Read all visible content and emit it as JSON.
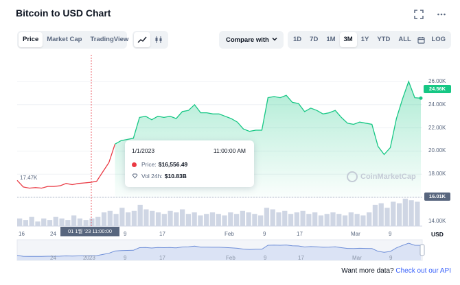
{
  "header": {
    "title": "Bitcoin to USD Chart",
    "expand_icon": "fullscreen-icon",
    "more_icon": "more-dots-icon"
  },
  "toolbar": {
    "view_tabs": [
      "Price",
      "Market Cap",
      "TradingView"
    ],
    "active_view": "Price",
    "chart_types": [
      "line-chart-icon",
      "candlestick-icon"
    ],
    "compare_label": "Compare with",
    "ranges": [
      "1D",
      "7D",
      "1M",
      "3M",
      "1Y",
      "YTD",
      "ALL"
    ],
    "active_range": "3M",
    "calendar_icon": "calendar-icon",
    "log_label": "LOG"
  },
  "tooltip": {
    "date": "1/1/2023",
    "time": "11:00:00 AM",
    "price_label": "Price:",
    "price_value": "$16,556.49",
    "volume_label": "Vol 24h:",
    "volume_value": "$10.83B"
  },
  "labels": {
    "start_value": "17.47K",
    "current_price": "24.56K",
    "open_price": "16.01K",
    "currency": "USD",
    "cursor_date": "01 1월 '23   11:00:00",
    "watermark": "CoinMarketCap"
  },
  "footer": {
    "text": "Want more data?",
    "link": "Check out our API"
  },
  "colors": {
    "up": "#16c784",
    "down": "#ea3943",
    "accent": "#3861fb",
    "muted": "#58667e"
  },
  "chart_data": {
    "type": "line",
    "title": "Bitcoin to USD Chart",
    "y_tick_labels": [
      "26.00K",
      "24.00K",
      "22.00K",
      "20.00K",
      "18.00K",
      "16.00K",
      "14.00K"
    ],
    "volume_tick_label": "14.00K",
    "x_tick_labels": [
      "16",
      "24",
      "9",
      "17",
      "Feb",
      "9",
      "17",
      "Mar",
      "9"
    ],
    "navigator_tick_labels": [
      "24",
      "2023",
      "9",
      "17",
      "Feb",
      "9",
      "17",
      "Mar",
      "9"
    ],
    "ylim": [
      14000,
      27000
    ],
    "series": [
      {
        "name": "Price",
        "values": [
          17470,
          16900,
          16800,
          16850,
          16800,
          16950,
          16950,
          17000,
          17200,
          17100,
          17200,
          17250,
          17300,
          17400,
          18200,
          19000,
          20600,
          20900,
          21000,
          21100,
          22900,
          23000,
          22700,
          23000,
          22900,
          23000,
          22800,
          23400,
          23500,
          24000,
          23300,
          23300,
          23200,
          23200,
          23000,
          22800,
          22500,
          21900,
          21700,
          21800,
          21800,
          24600,
          24700,
          24600,
          24800,
          24200,
          24100,
          23400,
          23700,
          23500,
          23200,
          23300,
          23500,
          22900,
          22400,
          22300,
          22500,
          22400,
          22300,
          20400,
          19700,
          20300,
          22800,
          24500,
          26000,
          24600,
          24560
        ]
      }
    ],
    "open_reference": 16010,
    "volume_bars": [
      5,
      4,
      6,
      3,
      5,
      4,
      6,
      5,
      4,
      7,
      5,
      4,
      5,
      6,
      9,
      10,
      8,
      12,
      9,
      10,
      14,
      11,
      10,
      9,
      8,
      10,
      9,
      11,
      8,
      9,
      7,
      8,
      9,
      8,
      7,
      9,
      8,
      10,
      9,
      8,
      7,
      12,
      11,
      9,
      10,
      8,
      9,
      10,
      8,
      9,
      7,
      8,
      9,
      8,
      7,
      9,
      8,
      7,
      9,
      14,
      15,
      12,
      16,
      15,
      18,
      17,
      16
    ]
  }
}
